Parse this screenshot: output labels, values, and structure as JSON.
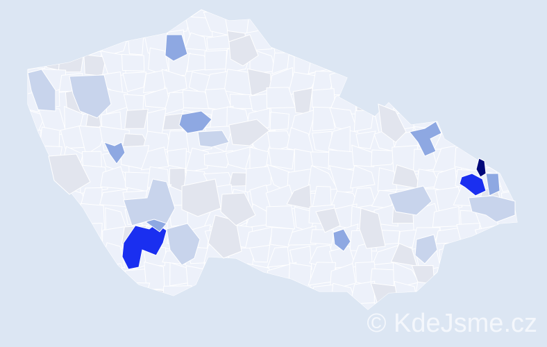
{
  "watermark": "© KdeJsme.cz",
  "colors": {
    "background": "#dce6f3",
    "country_fill": "#edf1fa",
    "border": "#ffffff",
    "level_grey": "#e2e5ee",
    "level_light": "#c8d4ec",
    "level_medium": "#8ea8e2",
    "level_high": "#1a2ff0",
    "level_max": "#00087a"
  }
}
